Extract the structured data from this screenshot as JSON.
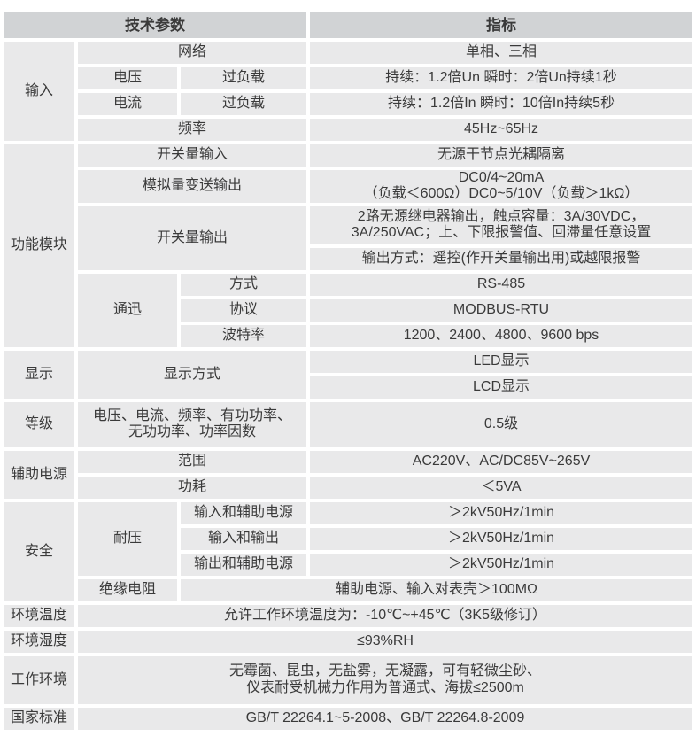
{
  "colors": {
    "page_bg": "#ffffff",
    "header_bg": "#d1d3d5",
    "cell_bg": "#e9e9ea",
    "text": "#3a3a3a"
  },
  "table": {
    "header": {
      "tech_params": "技术参数",
      "index": "指标"
    },
    "rows": [
      {
        "cells": [
          {
            "t": "技术参数",
            "cs": 3,
            "hdr": true,
            "name": "header-tech-params"
          },
          {
            "t": "指标",
            "hdr": true,
            "name": "header-index"
          }
        ]
      },
      {
        "cells": [
          {
            "t": "输入",
            "rs": 4,
            "name": "category-input"
          },
          {
            "t": "网络",
            "cs": 2,
            "name": "param-network"
          },
          {
            "t": "单相、三相",
            "name": "value-network"
          }
        ]
      },
      {
        "cells": [
          {
            "t": "电压",
            "name": "param-voltage"
          },
          {
            "t": "过负载",
            "name": "param-voltage-overload"
          },
          {
            "t": "持续：1.2倍Un 瞬时：2倍Un持续1秒",
            "name": "value-voltage-overload"
          }
        ]
      },
      {
        "cells": [
          {
            "t": "电流",
            "name": "param-current"
          },
          {
            "t": "过负载",
            "name": "param-current-overload"
          },
          {
            "t": "持续：1.2倍In 瞬时：10倍In持续5秒",
            "name": "value-current-overload"
          }
        ]
      },
      {
        "cells": [
          {
            "t": "频率",
            "cs": 2,
            "name": "param-frequency"
          },
          {
            "t": "45Hz~65Hz",
            "name": "value-frequency"
          }
        ]
      },
      {
        "cells": [
          {
            "t": "功能模块",
            "rs": 7,
            "name": "category-function-modules"
          },
          {
            "t": "开关量输入",
            "cs": 2,
            "name": "param-switch-input"
          },
          {
            "t": "无源干节点光耦隔离",
            "name": "value-switch-input"
          }
        ]
      },
      {
        "cells": [
          {
            "t": "模拟量变送输出",
            "cs": 2,
            "name": "param-analog-output"
          },
          {
            "t": "DC0/4~20mA\n（负载＜600Ω）DC0~5/10V（负载＞1kΩ）",
            "name": "value-analog-output"
          }
        ]
      },
      {
        "cells": [
          {
            "t": "开关量输出",
            "cs": 2,
            "rs": 2,
            "name": "param-switch-output"
          },
          {
            "t": "2路无源继电器输出，触点容量：3A/30VDC，\n3A/250VAC；上、下限报警值、回滞量任意设置",
            "name": "value-switch-output-relay"
          }
        ]
      },
      {
        "cells": [
          {
            "t": "输出方式：遥控(作开关量输出用)或越限报警",
            "name": "value-switch-output-mode"
          }
        ]
      },
      {
        "cells": [
          {
            "t": "通迅",
            "rs": 3,
            "name": "param-communication"
          },
          {
            "t": "方式",
            "name": "param-comm-mode"
          },
          {
            "t": "RS-485",
            "name": "value-comm-mode"
          }
        ]
      },
      {
        "cells": [
          {
            "t": "协议",
            "name": "param-comm-protocol"
          },
          {
            "t": "MODBUS-RTU",
            "name": "value-comm-protocol"
          }
        ]
      },
      {
        "cells": [
          {
            "t": "波特率",
            "name": "param-comm-baudrate"
          },
          {
            "t": "1200、2400、4800、9600 bps",
            "name": "value-comm-baudrate"
          }
        ]
      },
      {
        "cells": [
          {
            "t": "显示",
            "rs": 2,
            "name": "category-display"
          },
          {
            "t": "显示方式",
            "cs": 2,
            "rs": 2,
            "name": "param-display-mode"
          },
          {
            "t": "LED显示",
            "name": "value-display-led"
          }
        ]
      },
      {
        "cells": [
          {
            "t": "LCD显示",
            "name": "value-display-lcd"
          }
        ]
      },
      {
        "cells": [
          {
            "t": "等级",
            "name": "category-accuracy"
          },
          {
            "t": "电压、电流、频率、有功功率、\n无功功率、功率因数",
            "cs": 2,
            "name": "param-accuracy-items"
          },
          {
            "t": "0.5级",
            "name": "value-accuracy"
          }
        ]
      },
      {
        "cells": [
          {
            "t": "辅助电源",
            "rs": 2,
            "name": "category-aux-power"
          },
          {
            "t": "范围",
            "cs": 2,
            "name": "param-aux-range"
          },
          {
            "t": "AC220V、AC/DC85V~265V",
            "name": "value-aux-range"
          }
        ]
      },
      {
        "cells": [
          {
            "t": "功耗",
            "cs": 2,
            "name": "param-aux-consumption"
          },
          {
            "t": "＜5VA",
            "name": "value-aux-consumption"
          }
        ]
      },
      {
        "cells": [
          {
            "t": "安全",
            "rs": 4,
            "name": "category-safety"
          },
          {
            "t": "耐压",
            "rs": 3,
            "name": "param-withstand-voltage"
          },
          {
            "t": "输入和辅助电源",
            "name": "param-withstand-input-aux"
          },
          {
            "t": "＞2kV50Hz/1min",
            "name": "value-withstand-input-aux"
          }
        ]
      },
      {
        "cells": [
          {
            "t": "输入和输出",
            "name": "param-withstand-input-output"
          },
          {
            "t": "＞2kV50Hz/1min",
            "name": "value-withstand-input-output"
          }
        ]
      },
      {
        "cells": [
          {
            "t": "输出和辅助电源",
            "name": "param-withstand-output-aux"
          },
          {
            "t": "＞2kV50Hz/1min",
            "name": "value-withstand-output-aux"
          }
        ]
      },
      {
        "cells": [
          {
            "t": "绝缘电阻",
            "name": "param-insulation-resistance"
          },
          {
            "t": "辅助电源、输入对表壳＞100MΩ",
            "cs": 2,
            "name": "value-insulation-resistance"
          }
        ]
      },
      {
        "cells": [
          {
            "t": "环境温度",
            "name": "category-ambient-temperature"
          },
          {
            "t": "允许工作环境温度为：-10℃~+45℃（3K5级修订）",
            "cs": 3,
            "name": "value-ambient-temperature"
          }
        ]
      },
      {
        "cells": [
          {
            "t": "环境湿度",
            "name": "category-ambient-humidity"
          },
          {
            "t": "≤93%RH",
            "cs": 3,
            "name": "value-ambient-humidity"
          }
        ]
      },
      {
        "cells": [
          {
            "t": "工作环境",
            "name": "category-working-environment"
          },
          {
            "t": "无霉菌、昆虫，无盐雾，无凝露，可有轻微尘砂、\n仪表耐受机械力作用为普通式、海拔≤2500m",
            "cs": 3,
            "name": "value-working-environment"
          }
        ]
      },
      {
        "cells": [
          {
            "t": "国家标准",
            "name": "category-national-standard"
          },
          {
            "t": "GB/T 22264.1~5-2008、GB/T 22264.8-2009",
            "cs": 3,
            "name": "value-national-standard"
          }
        ]
      }
    ]
  }
}
